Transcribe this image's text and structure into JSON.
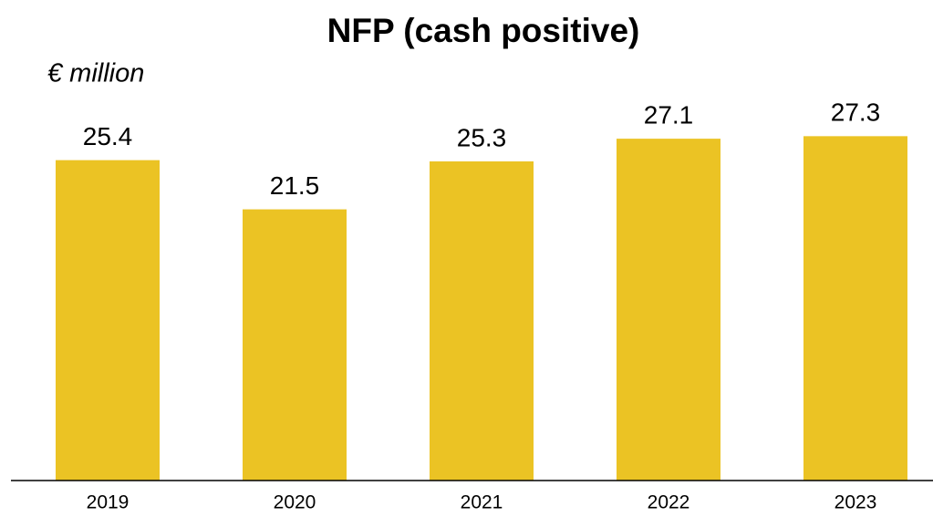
{
  "chart_data": {
    "type": "bar",
    "title": "NFP (cash positive)",
    "subtitle": "€ million",
    "categories": [
      "2019",
      "2020",
      "2021",
      "2022",
      "2023"
    ],
    "values": [
      25.4,
      21.5,
      25.3,
      27.1,
      27.3
    ],
    "color": "#ebc324",
    "ylim": [
      0,
      30
    ]
  }
}
